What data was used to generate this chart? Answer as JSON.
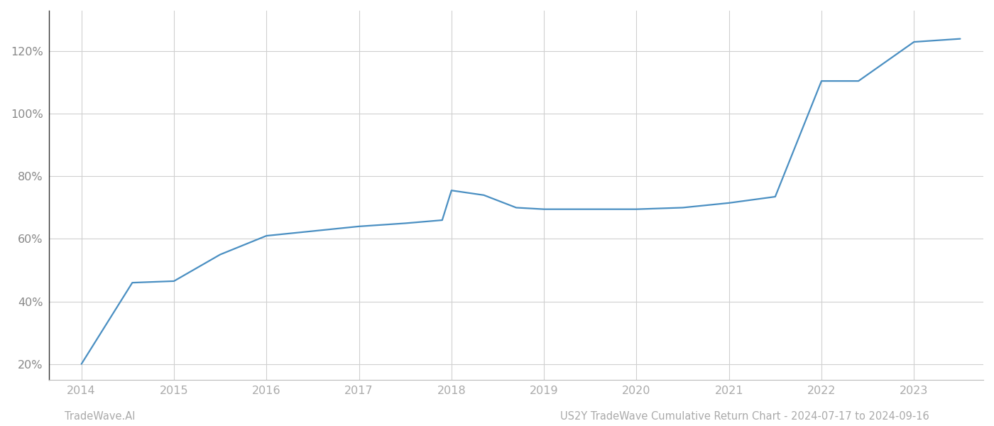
{
  "x_years": [
    2014.0,
    2014.55,
    2015.0,
    2015.5,
    2016.0,
    2016.5,
    2017.0,
    2017.5,
    2017.9,
    2018.0,
    2018.35,
    2018.7,
    2019.0,
    2019.5,
    2020.0,
    2020.5,
    2021.0,
    2021.25,
    2021.5,
    2022.0,
    2022.4,
    2023.0,
    2023.5
  ],
  "y_values": [
    20.0,
    46.0,
    46.5,
    55.0,
    61.0,
    62.5,
    64.0,
    65.0,
    66.0,
    75.5,
    74.0,
    70.0,
    69.5,
    69.5,
    69.5,
    70.0,
    71.5,
    72.5,
    73.5,
    110.5,
    110.5,
    123.0,
    124.0
  ],
  "line_color": "#4a8fc2",
  "line_width": 1.6,
  "bg_color": "#ffffff",
  "grid_color": "#d0d0d0",
  "xtick_color": "#aaaaaa",
  "ytick_color": "#888888",
  "x_ticks": [
    2014,
    2015,
    2016,
    2017,
    2018,
    2019,
    2020,
    2021,
    2022,
    2023
  ],
  "y_ticks": [
    20,
    40,
    60,
    80,
    100,
    120
  ],
  "y_min": 15,
  "y_max": 133,
  "x_min": 2013.65,
  "x_max": 2023.75,
  "footer_left": "TradeWave.AI",
  "footer_right": "US2Y TradeWave Cumulative Return Chart - 2024-07-17 to 2024-09-16",
  "footer_color": "#aaaaaa",
  "footer_fontsize": 10.5
}
